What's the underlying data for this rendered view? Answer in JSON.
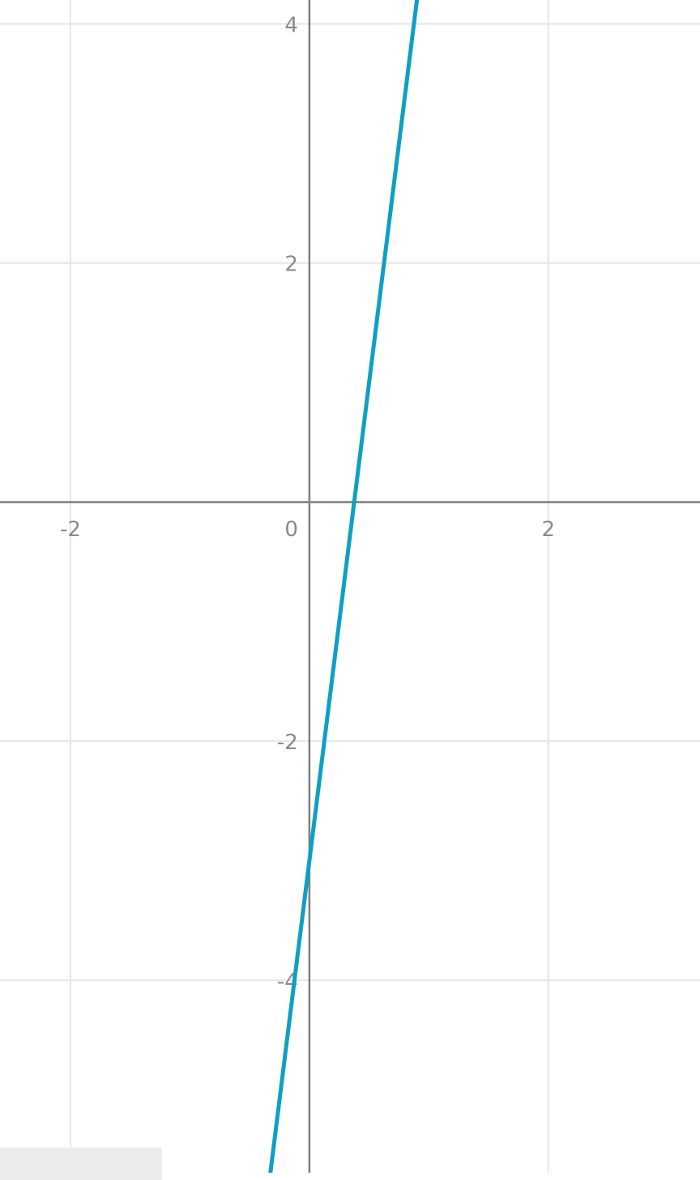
{
  "chart_data": {
    "type": "line",
    "title": "",
    "xlabel": "",
    "ylabel": "",
    "xlim": [
      -2.59,
      3.27
    ],
    "ylim": [
      -5.61,
      4.2
    ],
    "grid": true,
    "x_ticks": [
      -2,
      0,
      2
    ],
    "x_tick_labels": [
      "-2",
      "0",
      "2"
    ],
    "y_ticks": [
      -4,
      -2,
      2,
      4
    ],
    "y_tick_labels": [
      "-4",
      "-2",
      "2",
      "4"
    ],
    "series": [
      {
        "equation": "y = 8x - 3",
        "slope": 8,
        "intercept": -3,
        "color": "#0fa0c0",
        "x": [
          -0.33,
          0,
          0.375,
          0.9
        ],
        "y": [
          -5.64,
          -3,
          0,
          4.2
        ]
      }
    ]
  },
  "colors": {
    "grid": "#e6e6e6",
    "axis": "#7f7f7f",
    "line": "#0fa0c0"
  }
}
